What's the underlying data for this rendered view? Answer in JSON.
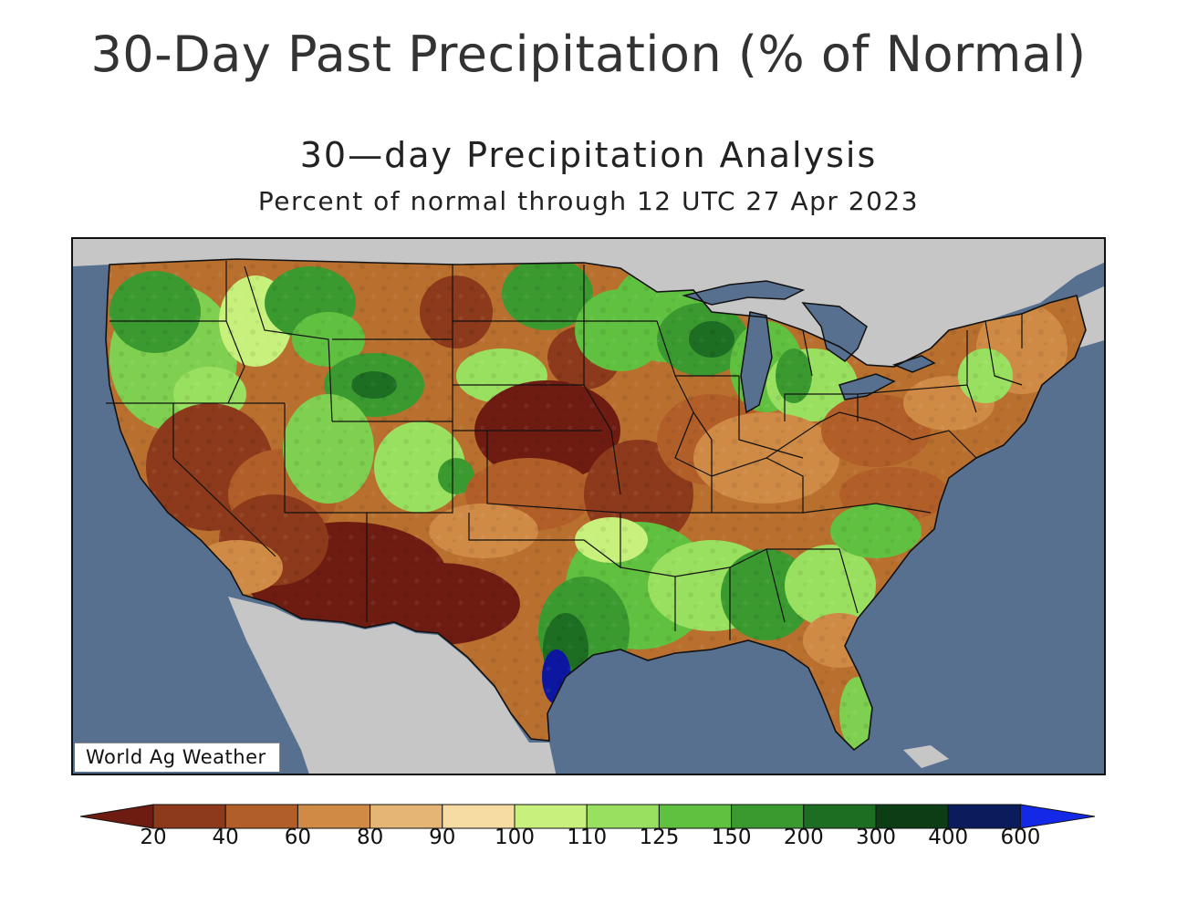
{
  "header": {
    "page_title": "30-Day Past Precipitation (% of Normal)",
    "map_title": "30—day Precipitation Analysis",
    "map_subtitle": "Percent of normal through 12 UTC 27 Apr 2023"
  },
  "map": {
    "region": "Contiguous United States",
    "credit": "World Ag Weather",
    "colors": {
      "ocean": "#58708f",
      "land_outside": "#c6c6c6",
      "lakes": "#58708f",
      "borders": "#111111"
    }
  },
  "legend": {
    "labels": [
      "20",
      "40",
      "60",
      "80",
      "90",
      "100",
      "110",
      "125",
      "150",
      "200",
      "300",
      "400",
      "600"
    ],
    "colors": [
      "#6e1c12",
      "#8c3a1b",
      "#b25e28",
      "#cf8a46",
      "#e4b574",
      "#f6dca2",
      "#c8f07c",
      "#9ae060",
      "#60c040",
      "#3a9a30",
      "#1d6d22",
      "#0c3d14",
      "#0a1c5c",
      "#0c16a0",
      "#1428e8"
    ]
  }
}
